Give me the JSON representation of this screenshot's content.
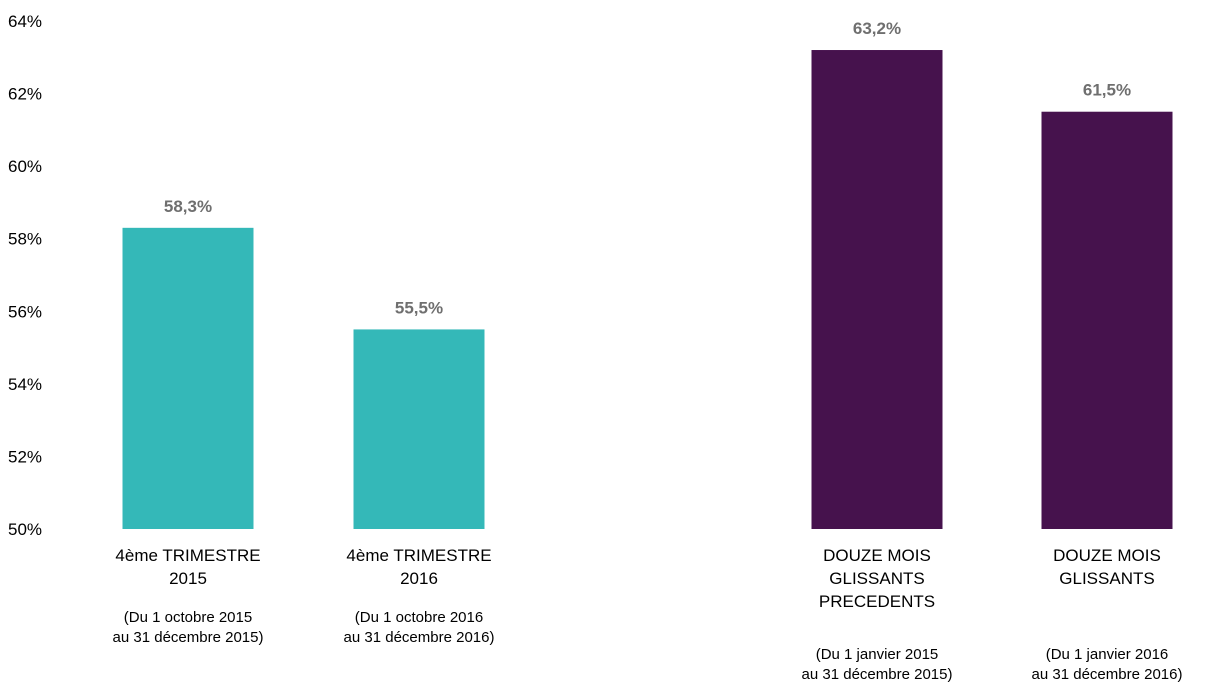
{
  "chart_data": {
    "type": "bar",
    "title": "",
    "xlabel": "",
    "ylabel": "",
    "ylim": [
      50,
      64
    ],
    "yticks": [
      50,
      52,
      54,
      56,
      58,
      60,
      62,
      64
    ],
    "ytick_labels": [
      "50%",
      "52%",
      "54%",
      "56%",
      "58%",
      "60%",
      "62%",
      "64%"
    ],
    "grid": false,
    "legend": "none",
    "colors": {
      "quarter": "#34b8b8",
      "rolling": "#46124d",
      "value_label": "#6f6f6f",
      "text": "#000000"
    },
    "categories": [
      {
        "group": "quarter",
        "label_lines": [
          "4ème TRIMESTRE",
          "2015"
        ],
        "sub_lines": [
          "(Du 1 octobre 2015",
          "au 31 décembre 2015)"
        ],
        "value": 58.3,
        "value_label": "58,3%"
      },
      {
        "group": "quarter",
        "label_lines": [
          "4ème TRIMESTRE",
          "2016"
        ],
        "sub_lines": [
          "(Du 1 octobre 2016",
          "au 31 décembre 2016)"
        ],
        "value": 55.5,
        "value_label": "55,5%"
      },
      {
        "group": "rolling",
        "label_lines": [
          "DOUZE MOIS",
          "GLISSANTS",
          "PRECEDENTS"
        ],
        "sub_lines": [
          "(Du 1 janvier 2015",
          "au 31 décembre 2015)"
        ],
        "value": 63.2,
        "value_label": "63,2%"
      },
      {
        "group": "rolling",
        "label_lines": [
          "DOUZE MOIS",
          "GLISSANTS"
        ],
        "sub_lines": [
          "(Du 1 janvier 2016",
          "au 31 décembre 2016)"
        ],
        "value": 61.5,
        "value_label": "61,5%"
      }
    ]
  }
}
